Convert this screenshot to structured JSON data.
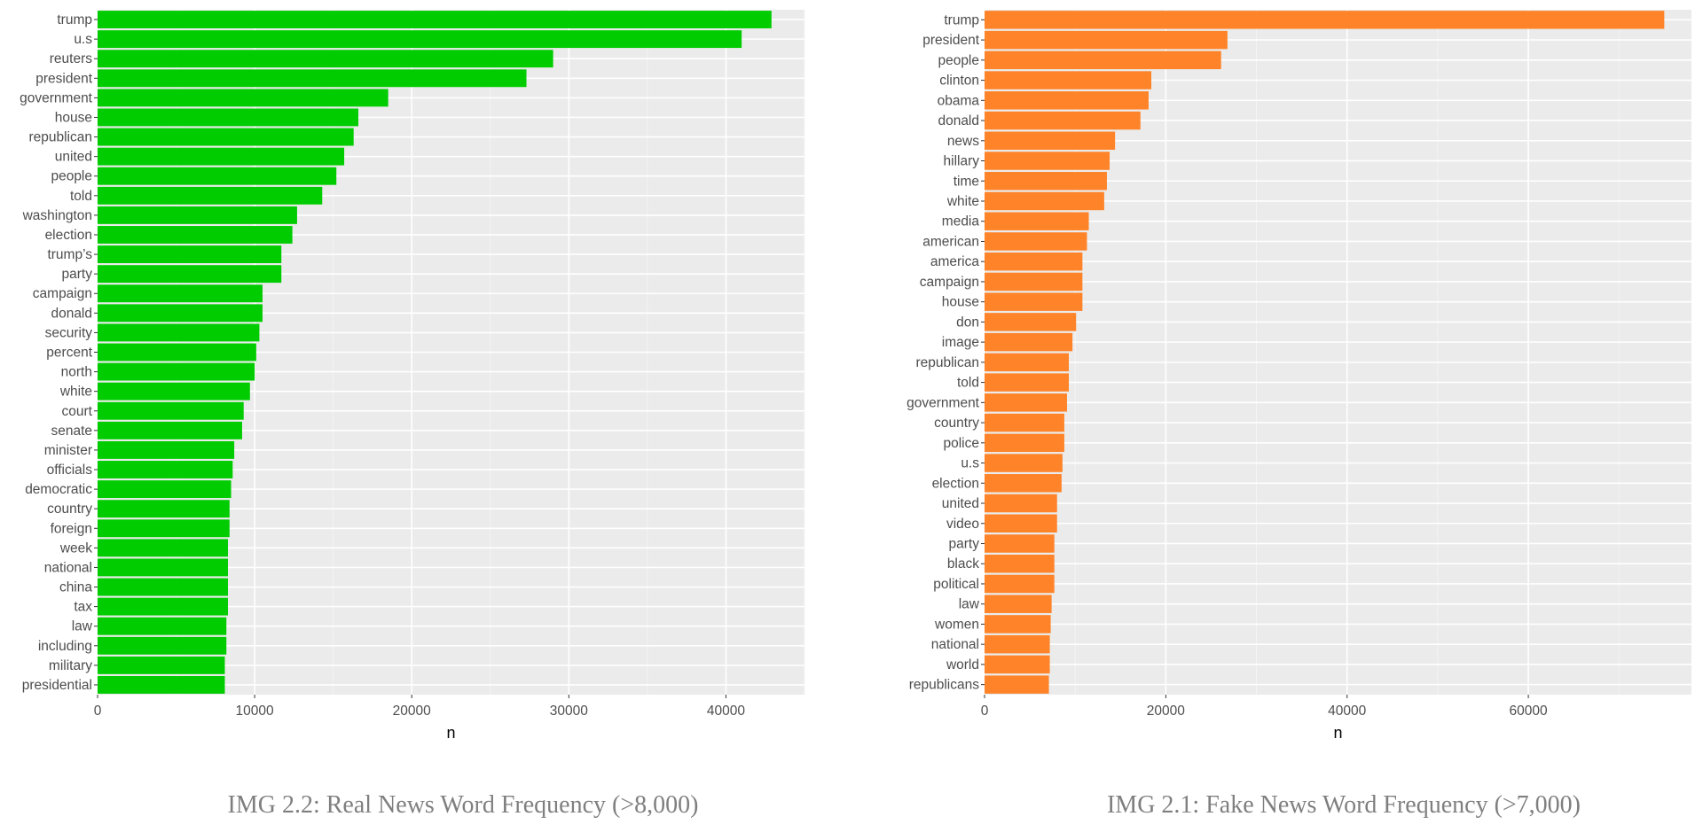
{
  "chart_data": [
    {
      "type": "bar",
      "orientation": "horizontal",
      "caption": "IMG 2.2: Real News Word Frequency (>8,000)",
      "xlabel": "n",
      "ylabel": "",
      "xlim": [
        0,
        45000
      ],
      "x_ticks": [
        0,
        10000,
        20000,
        30000,
        40000
      ],
      "grid": true,
      "color": "#00CC00",
      "categories": [
        "trump",
        "u.s",
        "reuters",
        "president",
        "government",
        "house",
        "republican",
        "united",
        "people",
        "told",
        "washington",
        "election",
        "trump’s",
        "party",
        "campaign",
        "donald",
        "security",
        "percent",
        "north",
        "white",
        "court",
        "senate",
        "minister",
        "officials",
        "democratic",
        "country",
        "foreign",
        "week",
        "national",
        "china",
        "tax",
        "law",
        "including",
        "military",
        "presidential"
      ],
      "values": [
        42900,
        41000,
        29000,
        27300,
        18500,
        16600,
        16300,
        15700,
        15200,
        14300,
        12700,
        12400,
        11700,
        11700,
        10500,
        10500,
        10300,
        10100,
        10000,
        9700,
        9300,
        9200,
        8700,
        8600,
        8500,
        8400,
        8400,
        8300,
        8300,
        8300,
        8300,
        8200,
        8200,
        8100,
        8100
      ]
    },
    {
      "type": "bar",
      "orientation": "horizontal",
      "caption": "IMG 2.1: Fake News Word Frequency (>7,000)",
      "xlabel": "n",
      "ylabel": "",
      "xlim": [
        0,
        78000
      ],
      "x_ticks": [
        0,
        20000,
        40000,
        60000
      ],
      "grid": true,
      "color": "#FF8328",
      "categories": [
        "trump",
        "president",
        "people",
        "clinton",
        "obama",
        "donald",
        "news",
        "hillary",
        "time",
        "white",
        "media",
        "american",
        "america",
        "campaign",
        "house",
        "don",
        "image",
        "republican",
        "told",
        "government",
        "country",
        "police",
        "u.s",
        "election",
        "united",
        "video",
        "party",
        "black",
        "political",
        "law",
        "women",
        "national",
        "world",
        "republicans"
      ],
      "values": [
        75000,
        26800,
        26100,
        18400,
        18100,
        17200,
        14400,
        13800,
        13500,
        13200,
        11500,
        11300,
        10800,
        10800,
        10800,
        10100,
        9700,
        9300,
        9300,
        9100,
        8800,
        8800,
        8600,
        8500,
        8000,
        8000,
        7700,
        7700,
        7700,
        7400,
        7300,
        7200,
        7200,
        7100
      ]
    }
  ]
}
